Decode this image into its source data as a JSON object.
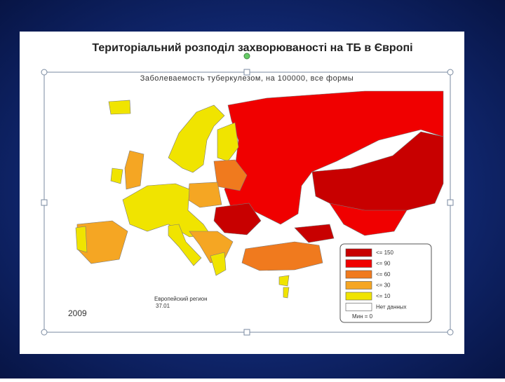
{
  "header": {
    "title": "Територіальний розподіл захворюваності на ТБ в Європі"
  },
  "map": {
    "subtitle": "Заболеваемость туберкулезом, на 100000, все формы",
    "region_label": "Европейский регион",
    "region_value": "37.01",
    "year": "2009",
    "legend": {
      "items": [
        {
          "label": "<= 150",
          "color": "#c80000"
        },
        {
          "label": "<= 90",
          "color": "#f00000"
        },
        {
          "label": "<= 60",
          "color": "#f07a1e"
        },
        {
          "label": "<= 30",
          "color": "#f5a623"
        },
        {
          "label": "<= 10",
          "color": "#f0e400"
        },
        {
          "label": "Нет данных",
          "color": "#ffffff"
        }
      ],
      "min_label": "Мин = 0"
    }
  }
}
